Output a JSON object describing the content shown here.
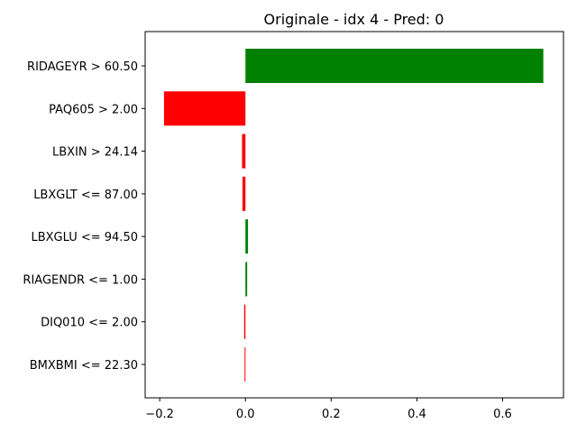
{
  "chart_data": {
    "type": "bar",
    "orientation": "horizontal",
    "title": "Originale - idx 4 - Pred: 0",
    "xlabel": "",
    "ylabel": "",
    "xlim": [
      -0.234,
      0.742
    ],
    "xticks": [
      -0.2,
      0.0,
      0.2,
      0.4,
      0.6
    ],
    "xtick_labels": [
      "−0.2",
      "0.0",
      "0.2",
      "0.4",
      "0.6"
    ],
    "grid": false,
    "categories": [
      "RIDAGEYR > 60.50",
      "PAQ605 > 2.00",
      "LBXIN > 24.14",
      "LBXGLT <= 87.00",
      "LBXGLU <= 94.50",
      "RIAGENDR <= 1.00",
      "DIQ010 <= 2.00",
      "BMXBMI <= 22.30"
    ],
    "values": [
      0.695,
      -0.19,
      -0.008,
      -0.007,
      0.006,
      0.004,
      -0.003,
      -0.002
    ],
    "colors": {
      "positive": "#008000",
      "negative": "#ff0000"
    }
  }
}
